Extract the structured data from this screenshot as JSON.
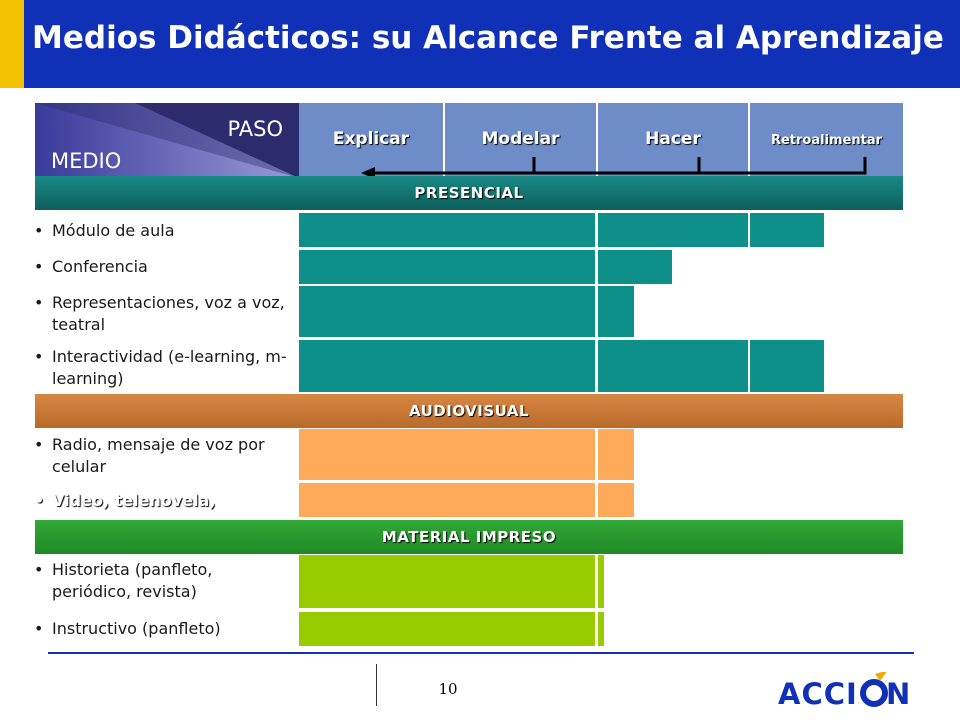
{
  "title": "Medios Didácticos: su Alcance Frente al Aprendizaje",
  "corner": {
    "paso": "PASO",
    "medio": "MEDIO"
  },
  "steps": [
    "Explicar",
    "Modelar",
    "Hacer",
    "Retroalimentar"
  ],
  "sections": {
    "presencial": "PRESENCIAL",
    "audiovisual": "AUDIOVISUAL",
    "impreso": "MATERIAL IMPRESO"
  },
  "rows": [
    {
      "label": "Módulo de aula",
      "reach": 3.5
    },
    {
      "label": "Conferencia",
      "reach": 2.5
    },
    {
      "label": "Representaciones, voz a voz, teatral",
      "reach": 2.25
    },
    {
      "label": "Interactividad (e-learning, m-learning)",
      "reach": 3.5
    },
    {
      "label": "Radio, mensaje de voz por celular",
      "reach": 2.25
    },
    {
      "label": "Video, telenovela,",
      "reach": 2.25
    },
    {
      "label": "Historieta (panfleto, periódico, revista)",
      "reach": 2.05
    },
    {
      "label": "Instructivo (panfleto)",
      "reach": 2.05
    }
  ],
  "colors": {
    "title_bar": "#1030b8",
    "accent": "#f5c200",
    "presencial": "#0f8f8a",
    "audiovisual": "#ffa95a",
    "impreso": "#99cc00"
  },
  "page_number": "10",
  "logo_text": "ACCIÓN"
}
